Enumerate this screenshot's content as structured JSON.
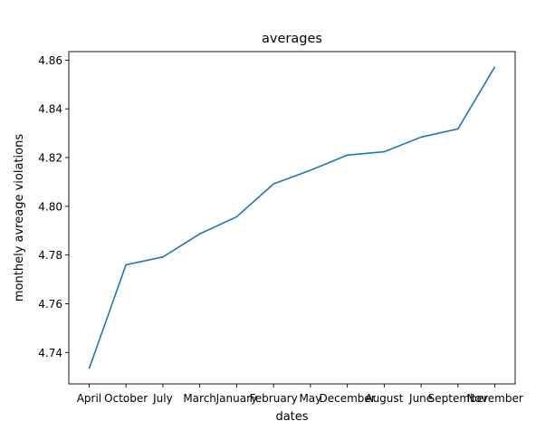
{
  "chart_data": {
    "type": "line",
    "title": "averages",
    "xlabel": "dates",
    "ylabel": "monthely avreage violations",
    "categories": [
      "April",
      "October",
      "July",
      "March",
      "January",
      "February",
      "May",
      "December",
      "August",
      "June",
      "September",
      "November"
    ],
    "series": [
      {
        "values": [
          4.7333,
          4.776,
          4.7792,
          4.7887,
          4.7957,
          4.8092,
          4.8148,
          4.821,
          4.8224,
          4.8284,
          4.8318,
          4.8573
        ],
        "color": "#1f77b4"
      }
    ],
    "ylim": [
      4.7271,
      4.8635
    ],
    "yticks": [
      4.74,
      4.76,
      4.78,
      4.8,
      4.82,
      4.84,
      4.86
    ],
    "ytick_labels": [
      "4.74",
      "4.76",
      "4.78",
      "4.80",
      "4.82",
      "4.84",
      "4.86"
    ],
    "grid": false,
    "legend": "none"
  }
}
